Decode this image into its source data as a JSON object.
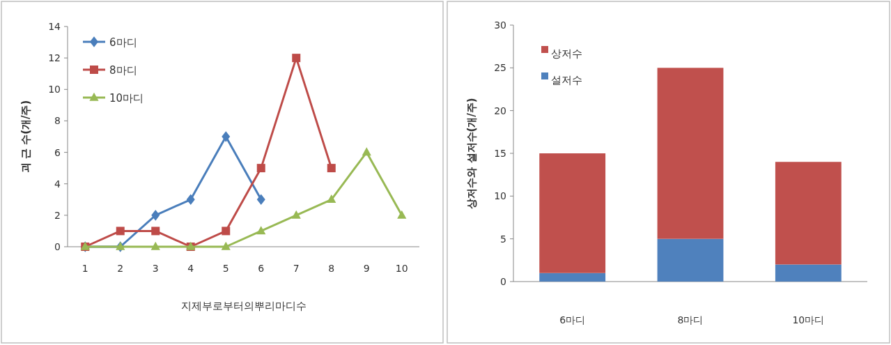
{
  "chart_data": [
    {
      "type": "line",
      "xlabel": "지제부로부터의뿌리마디수",
      "ylabel": "괴 근 수(개/주)",
      "categories": [
        "1",
        "2",
        "3",
        "4",
        "5",
        "6",
        "7",
        "8",
        "9",
        "10"
      ],
      "ylim": [
        0,
        14
      ],
      "yticks": [
        0,
        2,
        4,
        6,
        8,
        10,
        12,
        14
      ],
      "legend": "top left",
      "grid": false,
      "series": [
        {
          "name": "6마디",
          "color": "#4a7ebb",
          "marker": "diamond",
          "values": [
            0,
            0,
            2,
            3,
            7,
            3,
            null,
            null,
            null,
            null
          ]
        },
        {
          "name": "8마디",
          "color": "#be4b48",
          "marker": "square",
          "values": [
            0,
            1,
            1,
            0,
            1,
            5,
            12,
            5,
            null,
            null
          ]
        },
        {
          "name": "10마디",
          "color": "#98b954",
          "marker": "triangle",
          "values": [
            0,
            0,
            0,
            0,
            0,
            1,
            2,
            3,
            6,
            2
          ]
        }
      ]
    },
    {
      "type": "bar",
      "stacked": true,
      "ylabel": "상저수와 설저수(개/주)",
      "categories": [
        "6마디",
        "8마디",
        "10마디"
      ],
      "ylim": [
        0,
        30
      ],
      "yticks": [
        0,
        5,
        10,
        15,
        20,
        25,
        30
      ],
      "legend": "top left",
      "grid": false,
      "series": [
        {
          "name": "설저수",
          "color": "#4f81bd",
          "values": [
            1,
            5,
            2
          ]
        },
        {
          "name": "상저수",
          "color": "#c0504d",
          "values": [
            14,
            20,
            12
          ]
        }
      ]
    }
  ]
}
